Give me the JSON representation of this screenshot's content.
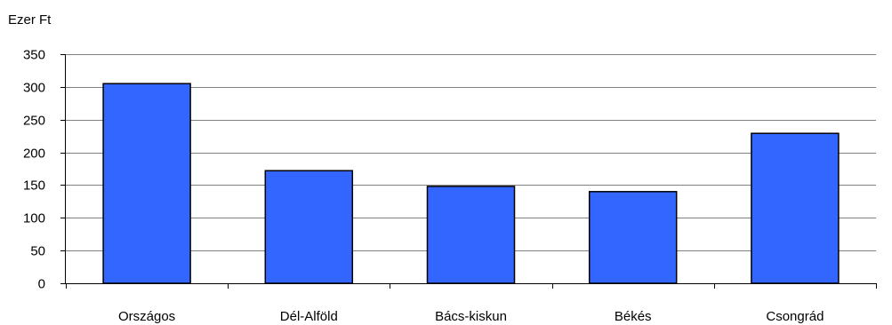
{
  "chart_data": {
    "type": "bar",
    "unit_label": "Ezer Ft",
    "categories": [
      "Országos",
      "Dél-Alföld",
      "Bács-kiskun",
      "Békés",
      "Csongrád"
    ],
    "values": [
      305,
      172,
      148,
      140,
      229
    ],
    "ylim": [
      0,
      350
    ],
    "yticks": [
      0,
      50,
      100,
      150,
      200,
      250,
      300,
      350
    ],
    "grid": true,
    "bar_color": "#3366ff",
    "bar_edge_color": "#000000",
    "grid_color": "#808080"
  }
}
